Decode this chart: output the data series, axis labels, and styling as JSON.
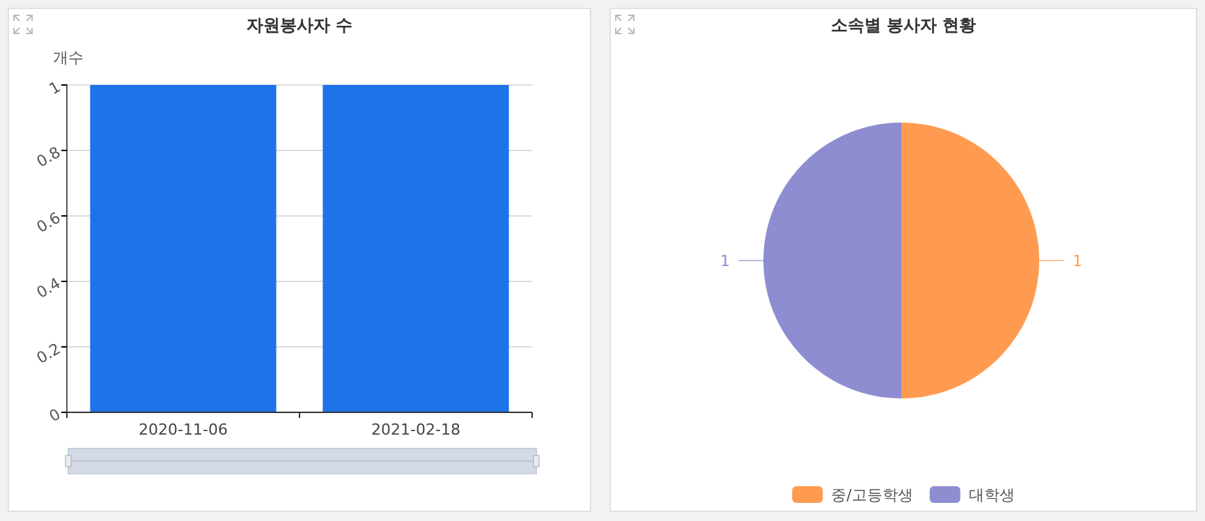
{
  "chart_data": [
    {
      "type": "bar",
      "title": "자원봉사자 수",
      "ylabel": "개수",
      "categories": [
        "2020-11-06",
        "2021-02-18"
      ],
      "values": [
        1,
        1
      ],
      "color": "#1e73e8",
      "ylim": [
        0,
        1
      ],
      "yticks": [
        0,
        0.2,
        0.4,
        0.6,
        0.8,
        1
      ],
      "grid": "y",
      "legend": false
    },
    {
      "type": "pie",
      "title": "소속별 봉사자 현황",
      "categories": [
        "중/고등학생",
        "대학생"
      ],
      "values": [
        1,
        1
      ],
      "colors": [
        "#ff9b50",
        "#8f8dd1"
      ],
      "data_labels": true,
      "legend": "bottom"
    }
  ]
}
